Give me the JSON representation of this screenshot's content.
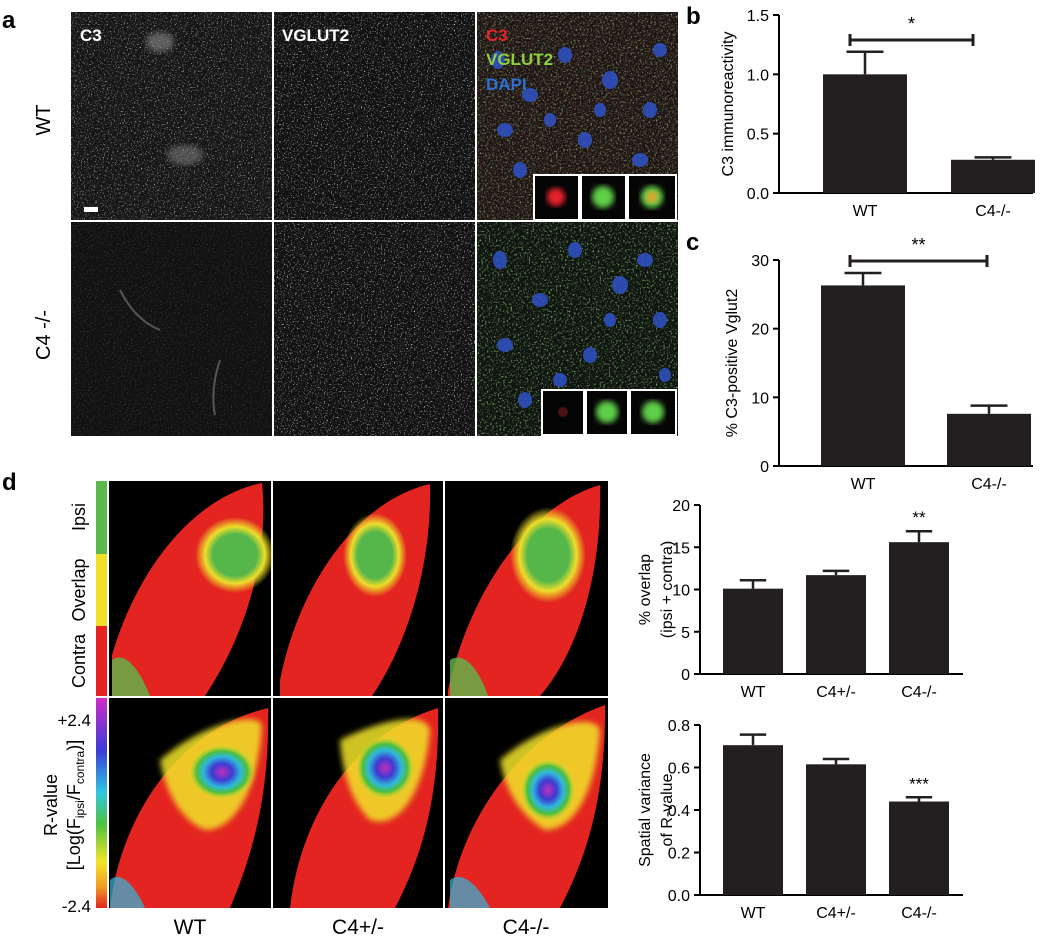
{
  "panels": {
    "a": {
      "letter": "a",
      "rows": [
        "WT",
        "C4 -/-"
      ],
      "channels": [
        "C3",
        "VGLUT2"
      ],
      "merge": [
        "C3",
        "VGLUT2",
        "DAPI"
      ],
      "colors": {
        "c3": "#e8232a",
        "vglut2": "#8fd13c",
        "dapi": "#2f6fd6"
      }
    },
    "b": {
      "letter": "b"
    },
    "c": {
      "letter": "c"
    },
    "d": {
      "letter": "d",
      "overlap_legend": [
        "Ipsi",
        "Overlap",
        "Contra"
      ],
      "overlap_colors": {
        "ipsi": "#5cb84a",
        "overlap": "#f0e027",
        "contra": "#e32420"
      },
      "rvalue_label": [
        "R-value",
        "[Log(F",
        "ipsi",
        "/F",
        "contra",
        ")]"
      ],
      "rvalue_max": "+2.4",
      "rvalue_min": "-2.4",
      "columns": [
        "WT",
        "C4+/-",
        "C4-/-"
      ]
    }
  },
  "chart_data": [
    {
      "type": "bar",
      "panel": "b",
      "categories": [
        "WT",
        "C4-/-"
      ],
      "values": [
        1.0,
        0.28
      ],
      "errors": [
        0.19,
        0.02
      ],
      "ylabel": "C3 immunoreactivity",
      "ylim": [
        0,
        1.5
      ],
      "yticks": [
        "0.0",
        "0.5",
        "1.0",
        "1.5"
      ],
      "significance": "*"
    },
    {
      "type": "bar",
      "panel": "c",
      "categories": [
        "WT",
        "C4-/-"
      ],
      "values": [
        26.3,
        7.6
      ],
      "errors": [
        1.8,
        1.2
      ],
      "ylabel": "% C3-positive Vglut2",
      "ylim": [
        0,
        30
      ],
      "yticks": [
        "0",
        "10",
        "20",
        "30"
      ],
      "significance": "**"
    },
    {
      "type": "bar",
      "panel": "d-top",
      "categories": [
        "WT",
        "C4+/-",
        "C4-/-"
      ],
      "values": [
        10.1,
        11.7,
        15.6
      ],
      "errors": [
        1.0,
        0.5,
        1.3
      ],
      "ylabel": [
        "% overlap",
        "(ipsi + contra)"
      ],
      "ylim": [
        0,
        20
      ],
      "yticks": [
        "0",
        "5",
        "10",
        "15",
        "20"
      ],
      "marks": [
        "",
        "",
        "**"
      ]
    },
    {
      "type": "bar",
      "panel": "d-bottom",
      "categories": [
        "WT",
        "C4+/-",
        "C4-/-"
      ],
      "values": [
        0.705,
        0.615,
        0.44
      ],
      "errors": [
        0.05,
        0.025,
        0.02
      ],
      "ylabel": [
        "Spatial variance",
        "of R-value"
      ],
      "ylim": [
        0,
        0.8
      ],
      "yticks": [
        "0.0",
        "0.2",
        "0.4",
        "0.6",
        "0.8"
      ],
      "marks": [
        "",
        "",
        "***"
      ]
    }
  ]
}
